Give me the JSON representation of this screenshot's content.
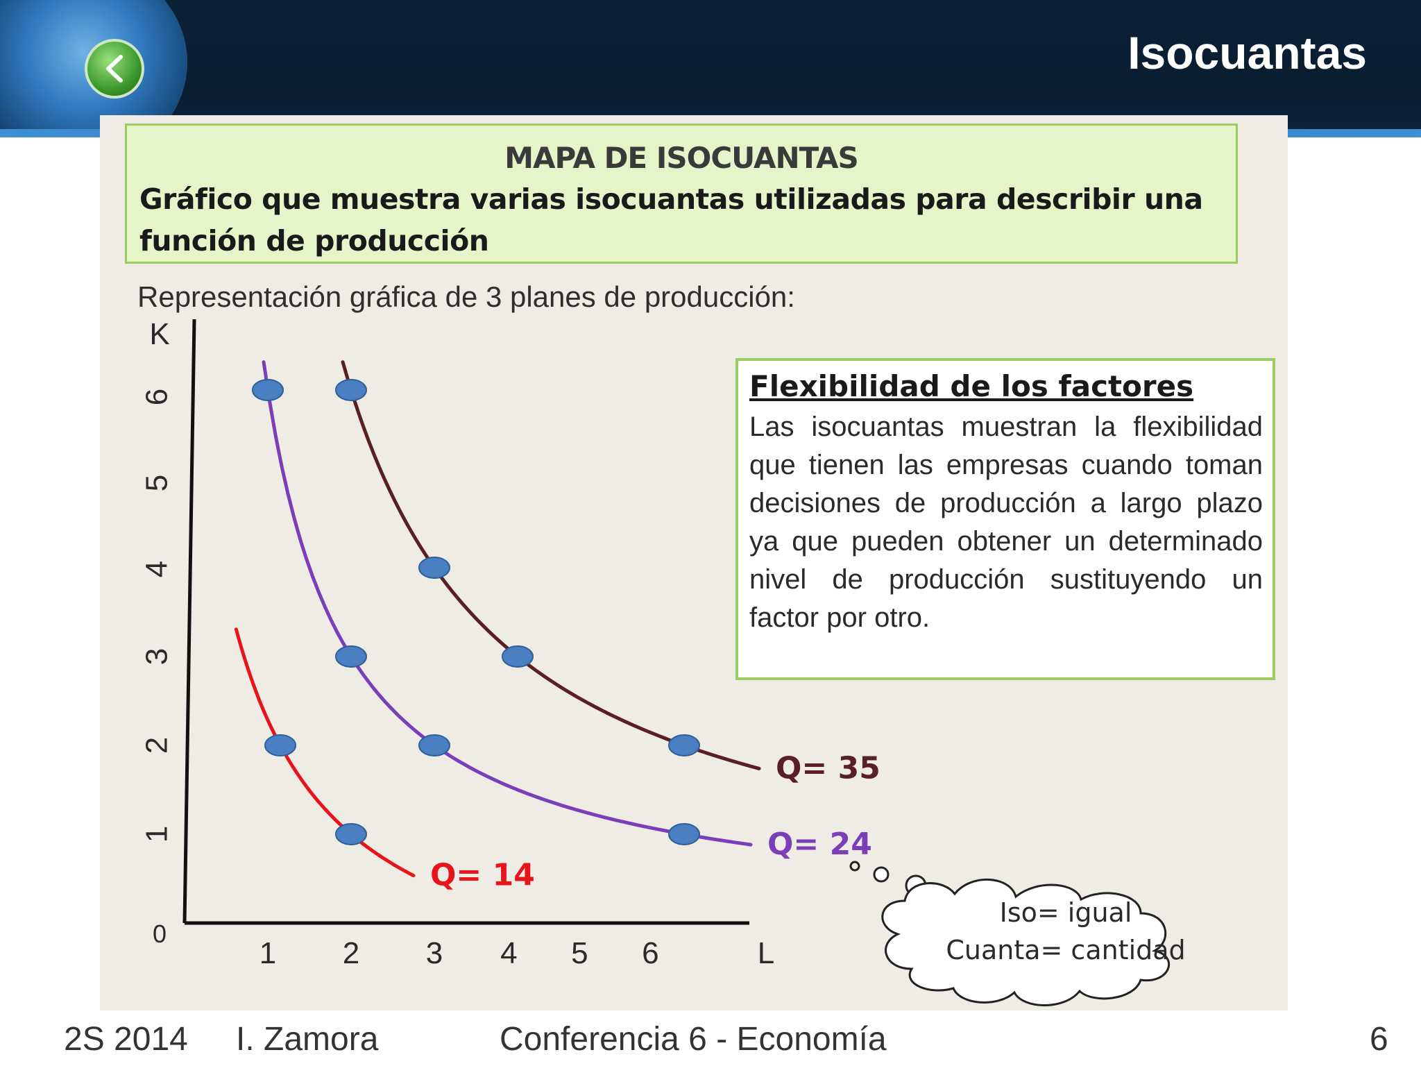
{
  "slide": {
    "title": "Isocuantas",
    "footer": {
      "semester": "2S 2014",
      "author": "I. Zamora",
      "course": "Conferencia 6 - Economía",
      "page": "6"
    }
  },
  "definition": {
    "title": "MAPA DE ISOCUANTAS",
    "body": "Gráfico que muestra varias isocuantas utilizadas para describir una función de producción"
  },
  "subtitle": "Representación gráfica de 3 planes de producción:",
  "flex_box": {
    "title": "Flexibilidad de los factores",
    "body": "Las isocuantas muestran la flexibilidad que tienen las empresas cuando toman decisiones de producción a largo plazo ya que pueden obtener un determinado nivel de producción sustituyendo un factor por otro."
  },
  "thought_bubble": {
    "line1": "Iso= igual",
    "line2": "Cuanta= cantidad"
  },
  "chart_data": {
    "type": "line",
    "xlabel": "L",
    "ylabel": "K",
    "origin_label": "0",
    "x_ticks": [
      "1",
      "2",
      "3",
      "4",
      "5",
      "6"
    ],
    "y_ticks": [
      "1",
      "2",
      "3",
      "4",
      "5",
      "6"
    ],
    "xlim": [
      0,
      6.9
    ],
    "ylim": [
      0,
      6.6
    ],
    "series": [
      {
        "name": "Q= 14",
        "color": "#e8141b",
        "curve_range": [
          0.62,
          2.75
        ],
        "points": [
          {
            "x": 1.15,
            "y": 2
          },
          {
            "x": 2,
            "y": 1
          }
        ]
      },
      {
        "name": "Q= 24",
        "color": "#7a3fb8",
        "curve_range": [
          0.95,
          6.8
        ],
        "points": [
          {
            "x": 1,
            "y": 6
          },
          {
            "x": 2,
            "y": 3
          },
          {
            "x": 3,
            "y": 2
          },
          {
            "x": 6,
            "y": 1
          }
        ]
      },
      {
        "name": "Q= 35",
        "color": "#5a1f22",
        "curve_range": [
          1.9,
          6.9
        ],
        "points": [
          {
            "x": 2,
            "y": 6
          },
          {
            "x": 3,
            "y": 4
          },
          {
            "x": 4,
            "y": 3
          },
          {
            "x": 6,
            "y": 2
          }
        ]
      }
    ]
  }
}
